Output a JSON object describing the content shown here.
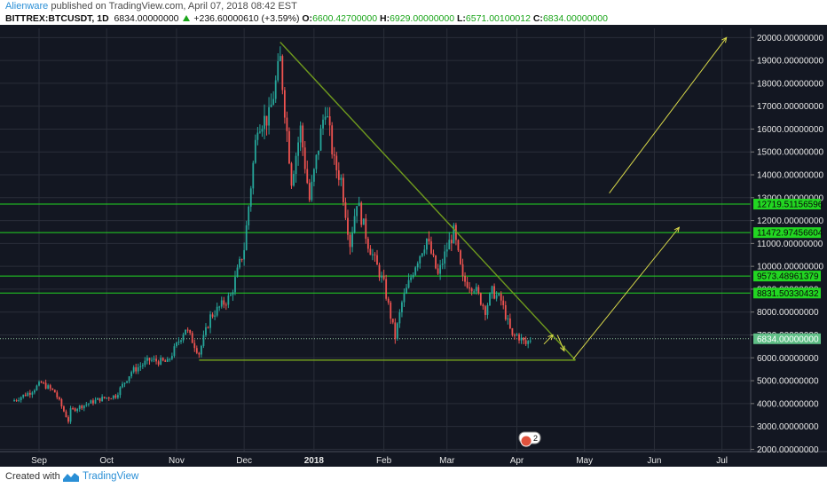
{
  "header": {
    "author": "Alienware",
    "published_text": "published on TradingView.com, April 07, 2018 08:42 EST",
    "symbol": "BITTREX:BTCUSDT, 1D",
    "last": "6834.00000000",
    "change": "+236.60000610 (+3.59%)",
    "o_label": "O:",
    "o_value": "6600.42700000",
    "h_label": "H:",
    "h_value": "6929.00000000",
    "l_label": "L:",
    "l_value": "6571.00100012",
    "c_label": "C:",
    "c_value": "6834.00000000"
  },
  "footer": {
    "created_label": "Created with",
    "brand": "TradingView"
  },
  "colors": {
    "background": "#131722",
    "grid": "#2a2e39",
    "up": "#26a69a",
    "down": "#ef5350",
    "trendline": "#6f9a1e",
    "arrow": "#d9d94a",
    "level": "#22d622",
    "axis_text": "#e6e6e6"
  },
  "chart_data": {
    "type": "candlestick",
    "x_ticks": [
      "Sep",
      "Oct",
      "Nov",
      "Dec",
      "2018",
      "Feb",
      "Mar",
      "Apr",
      "May",
      "Jun",
      "Jul"
    ],
    "y_ticks": [
      "2000.00000000",
      "3000.00000000",
      "4000.00000000",
      "5000.00000000",
      "6000.00000000",
      "7000.00000000",
      "8000.00000000",
      "9000.00000000",
      "10000.00000000",
      "11000.00000000",
      "12000.00000000",
      "13000.00000000",
      "14000.00000000",
      "15000.00000000",
      "16000.00000000",
      "17000.00000000",
      "18000.00000000",
      "19000.00000000",
      "20000.00000000"
    ],
    "ylim": [
      1900,
      20400
    ],
    "horizontal_levels": [
      {
        "value": 12719.51156596,
        "label": "12719.51156596"
      },
      {
        "value": 11472.97456604,
        "label": "11472.97456604"
      },
      {
        "value": 9573.48961379,
        "label": "9573.48961379"
      },
      {
        "value": 8831.50330432,
        "label": "8831.50330432"
      }
    ],
    "last_price": {
      "value": 6834,
      "label": "6834.00000000"
    },
    "price_path": [
      [
        "2017-08-20",
        4100
      ],
      [
        "2017-08-28",
        4500
      ],
      [
        "2017-09-02",
        4900
      ],
      [
        "2017-09-08",
        4500
      ],
      [
        "2017-09-14",
        3250
      ],
      [
        "2017-09-15",
        3700
      ],
      [
        "2017-09-20",
        3900
      ],
      [
        "2017-09-28",
        4200
      ],
      [
        "2017-10-05",
        4350
      ],
      [
        "2017-10-12",
        5400
      ],
      [
        "2017-10-20",
        5900
      ],
      [
        "2017-10-28",
        5800
      ],
      [
        "2017-11-05",
        7300
      ],
      [
        "2017-11-11",
        6200
      ],
      [
        "2017-11-16",
        7800
      ],
      [
        "2017-11-25",
        8700
      ],
      [
        "2017-12-01",
        10800
      ],
      [
        "2017-12-07",
        16300
      ],
      [
        "2017-12-12",
        16500
      ],
      [
        "2017-12-17",
        19000
      ],
      [
        "2017-12-22",
        13800
      ],
      [
        "2017-12-26",
        16000
      ],
      [
        "2017-12-30",
        12900
      ],
      [
        "2018-01-06",
        17000
      ],
      [
        "2018-01-10",
        14500
      ],
      [
        "2018-01-13",
        13800
      ],
      [
        "2018-01-17",
        11000
      ],
      [
        "2018-01-20",
        12900
      ],
      [
        "2018-01-25",
        11000
      ],
      [
        "2018-02-01",
        9200
      ],
      [
        "2018-02-06",
        6900
      ],
      [
        "2018-02-09",
        8400
      ],
      [
        "2018-02-15",
        10100
      ],
      [
        "2018-02-20",
        11200
      ],
      [
        "2018-02-25",
        9600
      ],
      [
        "2018-03-01",
        10800
      ],
      [
        "2018-03-04",
        11500
      ],
      [
        "2018-03-08",
        9400
      ],
      [
        "2018-03-13",
        9100
      ],
      [
        "2018-03-18",
        8100
      ],
      [
        "2018-03-21",
        8900
      ],
      [
        "2018-03-25",
        8500
      ],
      [
        "2018-03-30",
        6900
      ],
      [
        "2018-04-01",
        7000
      ],
      [
        "2018-04-05",
        6600
      ],
      [
        "2018-04-07",
        6834
      ]
    ],
    "trendlines": [
      {
        "from": [
          "2017-12-17",
          19800
        ],
        "to": [
          "2018-04-27",
          5900
        ]
      },
      {
        "from": [
          "2017-11-11",
          5900
        ],
        "to": [
          "2018-04-27",
          5900
        ]
      },
      {
        "from": [
          "2017-11-11",
          5900
        ],
        "to": [
          "2017-12-17",
          19800
        ]
      }
    ],
    "arrows": [
      {
        "from": [
          "2018-04-26",
          5950
        ],
        "to": [
          "2018-06-12",
          11700
        ]
      },
      {
        "from": [
          "2018-05-12",
          13200
        ],
        "to": [
          "2018-07-03",
          20000
        ]
      },
      {
        "from": [
          "2018-04-13",
          6600
        ],
        "to": [
          "2018-04-17",
          7000
        ]
      },
      {
        "from": [
          "2018-04-19",
          7000
        ],
        "to": [
          "2018-04-22",
          6300
        ]
      }
    ],
    "legend_badge": "2"
  }
}
